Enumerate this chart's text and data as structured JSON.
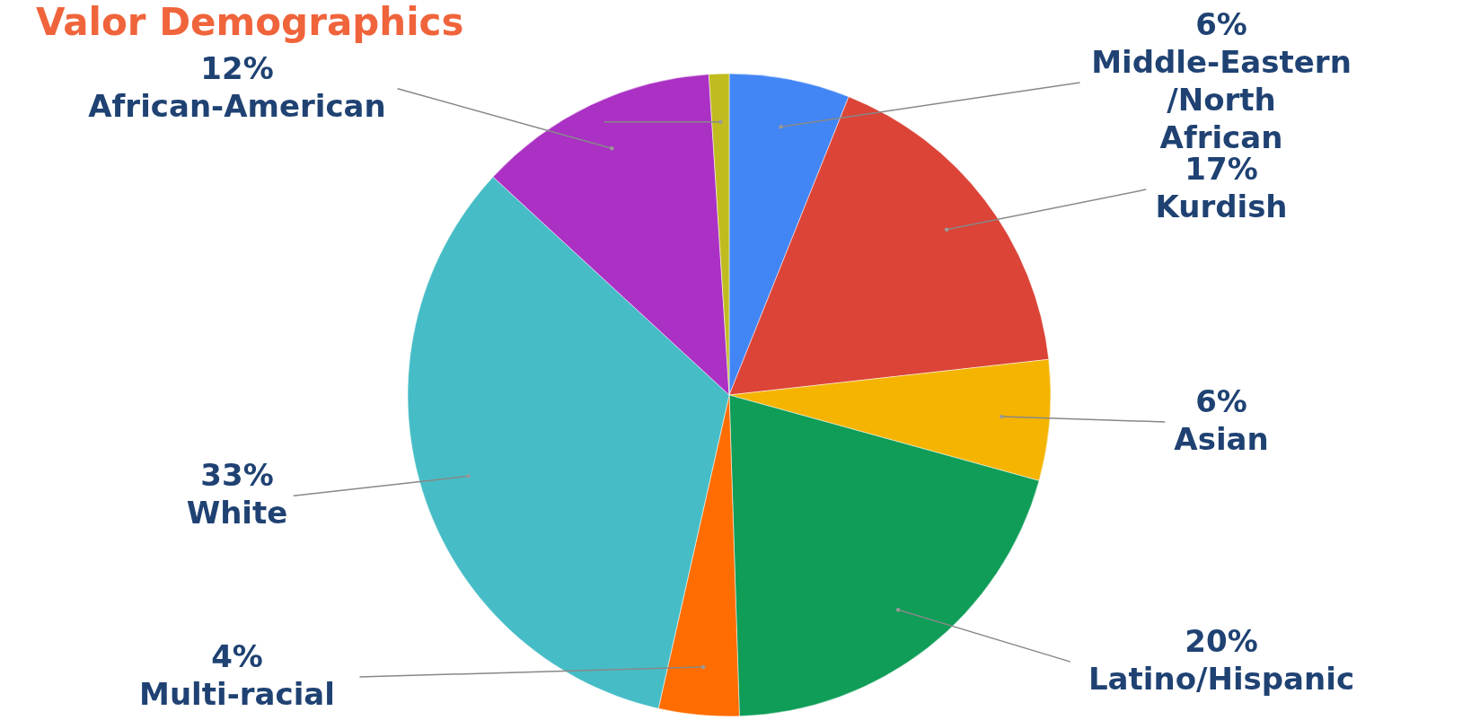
{
  "chart_data": {
    "type": "pie",
    "title": "Valor Demographics",
    "categories": [
      "Middle-Eastern /North African",
      "Kurdish",
      "Asian",
      "Latino/Hispanic",
      "Multi-racial",
      "White",
      "African-American",
      null
    ],
    "values": [
      6,
      17,
      6,
      20,
      4,
      33,
      12,
      1
    ],
    "value_labels": [
      "6%",
      "17%",
      "6%",
      "20%",
      "4%",
      "33%",
      "12%",
      null
    ],
    "colors": [
      "#4285f4",
      "#db4437",
      "#f4b400",
      "#0f9d58",
      "#ff6d00",
      "#46bdc6",
      "#ab30c4",
      "#c0bc20"
    ]
  }
}
